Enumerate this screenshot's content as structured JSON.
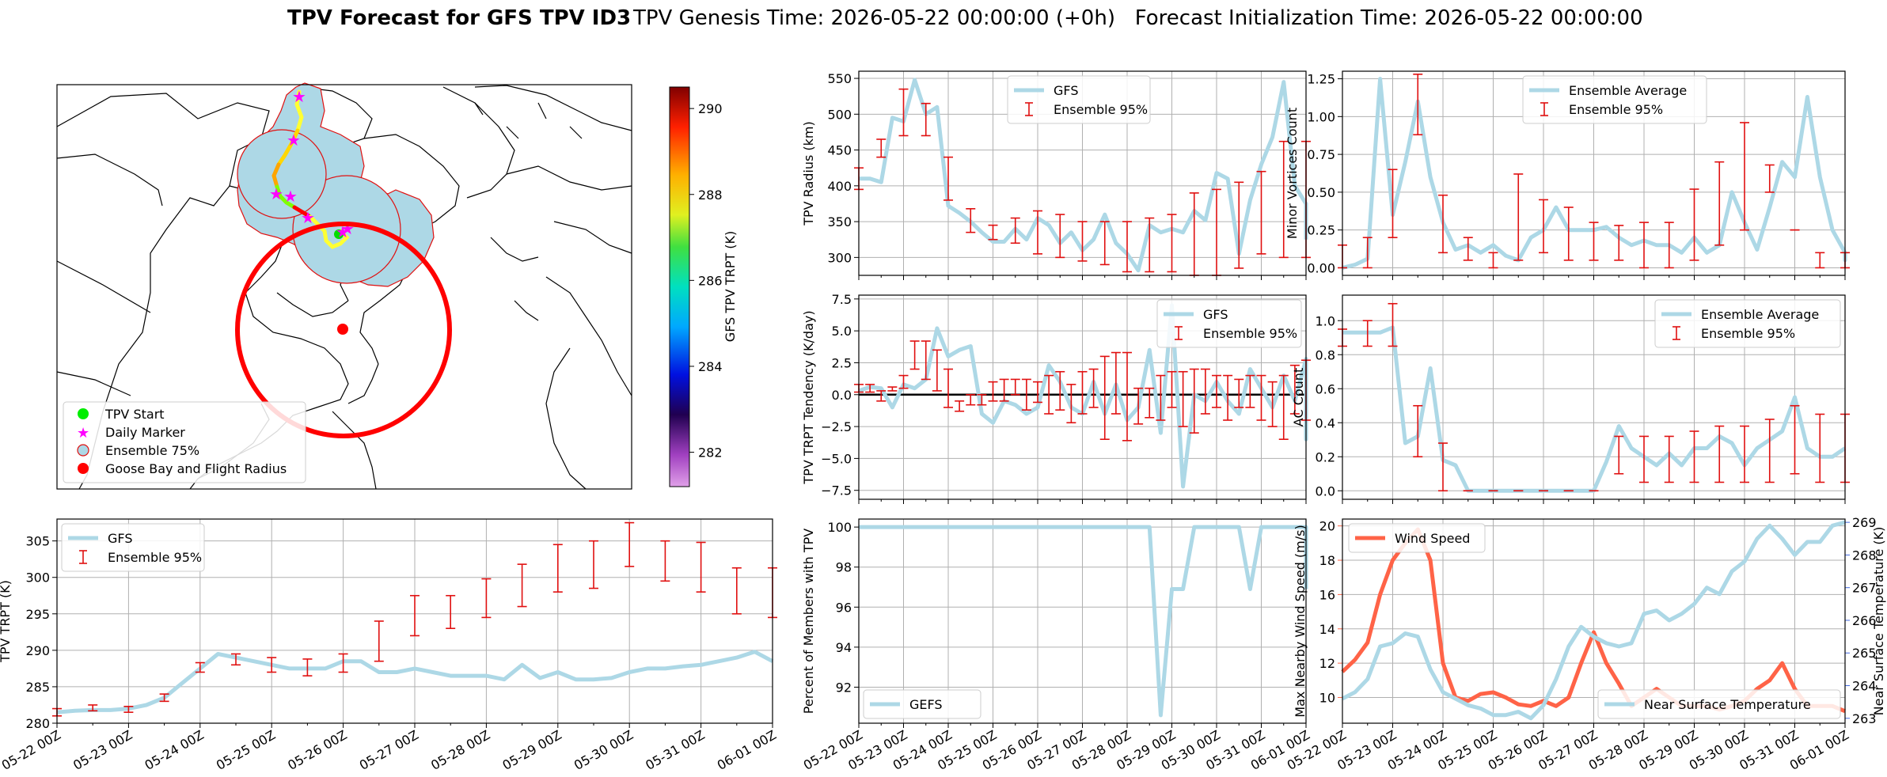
{
  "title": {
    "bold": "TPV Forecast for GFS TPV ID3",
    "rest": "TPV Genesis Time: 2026-05-22 00:00:00 (+0h)   Forecast Initialization Time: 2026-05-22 00:00:00"
  },
  "colors": {
    "light_blue": "#add8e6",
    "error_red": "#e01010",
    "wind": "#ff6347",
    "temp_axis": "#4169e1"
  },
  "dates": [
    "05-22 00Z",
    "05-23 00Z",
    "05-24 00Z",
    "05-25 00Z",
    "05-26 00Z",
    "05-27 00Z",
    "05-28 00Z",
    "05-29 00Z",
    "05-30 00Z",
    "05-31 00Z",
    "06-01 00Z"
  ],
  "map": {
    "legend": [
      {
        "label": "TPV Start",
        "marker": "green-dot"
      },
      {
        "label": "Daily Marker",
        "marker": "magenta-star"
      },
      {
        "label": "Ensemble 75%",
        "marker": "blue-circle"
      },
      {
        "label": "Goose Bay and Flight Radius",
        "marker": "red-dot"
      }
    ],
    "colorbar": {
      "label": "GFS TPV TRPT (K)",
      "ticks": [
        282,
        284,
        286,
        288,
        290
      ],
      "range": [
        281.2,
        290.5
      ]
    }
  },
  "chart_data": [
    {
      "id": "radius",
      "type": "line",
      "ylabel": "TPV Radius (km)",
      "ylim": [
        275,
        560
      ],
      "yticks": [
        300,
        350,
        400,
        450,
        500,
        550
      ],
      "xlim": [
        0,
        10
      ],
      "grid": true,
      "legend": {
        "entries": [
          "GFS",
          "Ensemble 95%"
        ],
        "position": "upper-center"
      },
      "series": [
        {
          "name": "GFS",
          "x_step_days": 0.25,
          "values": [
            410,
            410,
            405,
            495,
            490,
            548,
            500,
            510,
            372,
            362,
            350,
            335,
            322,
            322,
            340,
            325,
            355,
            345,
            320,
            335,
            310,
            325,
            360,
            320,
            305,
            282,
            345,
            335,
            340,
            335,
            365,
            352,
            418,
            410,
            305,
            380,
            430,
            468,
            545,
            400,
            375,
            335,
            350,
            325
          ]
        }
      ],
      "errorbars": [
        {
          "name": "Ensemble 95%",
          "x": [
            0,
            0.5,
            1,
            1.5,
            2,
            2.5,
            3,
            3.5,
            4,
            4.5,
            5,
            5.5,
            6,
            6.5,
            7,
            7.5,
            8,
            8.5,
            9,
            9.5,
            10
          ],
          "low": [
            395,
            440,
            470,
            470,
            380,
            335,
            325,
            320,
            305,
            300,
            295,
            290,
            280,
            280,
            280,
            275,
            275,
            285,
            305,
            300,
            300
          ],
          "high": [
            425,
            465,
            535,
            515,
            440,
            368,
            345,
            355,
            365,
            360,
            350,
            350,
            350,
            355,
            360,
            390,
            395,
            405,
            420,
            462,
            462
          ]
        }
      ]
    },
    {
      "id": "minor_vortices",
      "type": "line",
      "ylabel": "Minor Vortices Count",
      "ylim": [
        -0.05,
        1.3
      ],
      "yticks": [
        0.0,
        0.25,
        0.5,
        0.75,
        1.0,
        1.25
      ],
      "yticklabels": [
        "0.00",
        "0.25",
        "0.50",
        "0.75",
        "1.00",
        "1.25"
      ],
      "xlim": [
        0,
        10
      ],
      "grid": true,
      "legend": {
        "entries": [
          "Ensemble Average",
          "Ensemble 95%"
        ],
        "position": "upper-center"
      },
      "series": [
        {
          "name": "Ensemble Average",
          "x_step_days": 0.25,
          "values": [
            0.0,
            0.02,
            0.06,
            1.25,
            0.35,
            0.7,
            1.1,
            0.6,
            0.3,
            0.12,
            0.15,
            0.1,
            0.15,
            0.08,
            0.05,
            0.2,
            0.25,
            0.4,
            0.25,
            0.25,
            0.25,
            0.27,
            0.2,
            0.15,
            0.18,
            0.15,
            0.15,
            0.1,
            0.2,
            0.1,
            0.15,
            0.5,
            0.3,
            0.12,
            0.4,
            0.7,
            0.6,
            1.13,
            0.6,
            0.25,
            0.1,
            0.06,
            0.05,
            0.08
          ]
        }
      ],
      "errorbars": [
        {
          "name": "Ensemble 95%",
          "x": [
            0,
            0.5,
            1,
            1.5,
            2,
            2.5,
            3,
            3.5,
            4,
            4.5,
            5,
            5.5,
            6,
            6.5,
            7,
            7.5,
            8,
            8.5,
            9,
            9.5,
            10
          ],
          "low": [
            0.0,
            0.0,
            0.2,
            0.88,
            0.1,
            0.05,
            0.0,
            0.05,
            0.1,
            0.05,
            0.05,
            0.05,
            0.0,
            0.0,
            0.05,
            0.15,
            0.25,
            0.5,
            0.25,
            0.0,
            0.0
          ],
          "high": [
            0.15,
            0.2,
            0.65,
            1.28,
            0.48,
            0.2,
            0.1,
            0.62,
            0.45,
            0.4,
            0.3,
            0.28,
            0.3,
            0.3,
            0.52,
            0.7,
            0.96,
            0.68,
            0.25,
            0.1,
            0.1
          ]
        }
      ]
    },
    {
      "id": "trpt_tendency",
      "type": "line",
      "ylabel": "TPV TRPT Tendency (K/day)",
      "ylim": [
        -8.2,
        7.8
      ],
      "yticks": [
        -7.5,
        -5.0,
        -2.5,
        0.0,
        2.5,
        5.0,
        7.5
      ],
      "yticklabels": [
        "−7.5",
        "−5.0",
        "−2.5",
        "0.0",
        "2.5",
        "5.0",
        "7.5"
      ],
      "xlim": [
        0,
        10
      ],
      "grid": true,
      "zero_line": true,
      "legend": {
        "entries": [
          "GFS",
          "Ensemble 95%"
        ],
        "position": "upper-right"
      },
      "series": [
        {
          "name": "GFS",
          "x_step_days": 0.25,
          "values": [
            0.3,
            0.6,
            0.5,
            -1.0,
            0.8,
            0.5,
            1.2,
            5.2,
            3.0,
            3.5,
            3.8,
            -1.5,
            -2.2,
            -0.5,
            -0.8,
            -1.5,
            -1.0,
            2.3,
            1.0,
            -1.0,
            -1.5,
            1.0,
            -1.5,
            0.8,
            -2.0,
            -1.0,
            3.5,
            -3.0,
            7.0,
            -7.2,
            0.0,
            -0.5,
            1.0,
            -0.5,
            -1.5,
            2.0,
            0.5,
            -1.0,
            1.5,
            -0.5,
            2.8,
            1.0,
            0.5,
            -3.5,
            2.5,
            -1.8
          ]
        }
      ],
      "errorbars": [
        {
          "name": "Ensemble 95%",
          "x": [
            0,
            0.25,
            0.5,
            0.75,
            1,
            1.25,
            1.5,
            1.75,
            2,
            2.25,
            2.5,
            2.75,
            3,
            3.25,
            3.5,
            3.75,
            4,
            4.25,
            4.5,
            4.75,
            5,
            5.25,
            5.5,
            5.75,
            6,
            6.25,
            6.5,
            6.75,
            7,
            7.25,
            7.5,
            7.75,
            8,
            8.25,
            8.5,
            8.75,
            9,
            9.25,
            9.5,
            9.75,
            10
          ],
          "low": [
            0.2,
            0.2,
            -0.5,
            0.3,
            0.5,
            2.0,
            1.2,
            0.3,
            -1.0,
            -1.3,
            -0.8,
            -0.8,
            -0.5,
            -0.5,
            0.0,
            -1.2,
            -0.6,
            -1.5,
            -1.2,
            -2.2,
            -1.5,
            -1.0,
            -3.5,
            -1.5,
            -3.6,
            -2.3,
            -1.8,
            -2.0,
            -1.0,
            -2.5,
            -3.0,
            -1.5,
            -1.0,
            -2.0,
            -1.0,
            -1.0,
            -2.0,
            -2.5,
            -3.5,
            -1.5,
            -2.0
          ],
          "high": [
            0.8,
            0.8,
            0.3,
            0.6,
            1.5,
            4.2,
            4.2,
            3.5,
            2.0,
            -0.5,
            0.0,
            0.0,
            1.0,
            1.2,
            1.2,
            1.2,
            1.0,
            1.5,
            1.8,
            0.8,
            1.8,
            2.0,
            3.0,
            3.3,
            3.3,
            0.5,
            0.5,
            1.5,
            1.8,
            1.8,
            2.0,
            2.0,
            1.5,
            1.5,
            1.2,
            1.5,
            1.5,
            1.0,
            1.5,
            2.3,
            2.7
          ]
        }
      ]
    },
    {
      "id": "ac_count",
      "type": "line",
      "ylabel": "AC Count",
      "ylim": [
        -0.05,
        1.15
      ],
      "yticks": [
        0.0,
        0.2,
        0.4,
        0.6,
        0.8,
        1.0
      ],
      "yticklabels": [
        "0.0",
        "0.2",
        "0.4",
        "0.6",
        "0.8",
        "1.0"
      ],
      "xlim": [
        0,
        10
      ],
      "grid": true,
      "legend": {
        "entries": [
          "Ensemble Average",
          "Ensemble 95%"
        ],
        "position": "upper-right"
      },
      "series": [
        {
          "name": "Ensemble Average",
          "x_step_days": 0.25,
          "values": [
            0.93,
            0.93,
            0.93,
            0.93,
            0.96,
            0.28,
            0.32,
            0.72,
            0.18,
            0.15,
            0.0,
            0.0,
            0.0,
            0.0,
            0.0,
            0.0,
            0.0,
            0.0,
            0.0,
            0.0,
            0.0,
            0.17,
            0.38,
            0.25,
            0.2,
            0.15,
            0.22,
            0.15,
            0.25,
            0.25,
            0.32,
            0.28,
            0.15,
            0.25,
            0.3,
            0.35,
            0.55,
            0.25,
            0.2,
            0.2,
            0.25
          ]
        }
      ],
      "errorbars": [
        {
          "name": "Ensemble 95%",
          "x": [
            0,
            0.5,
            1,
            1.5,
            2,
            2.5,
            3,
            3.5,
            4,
            4.5,
            5,
            5.5,
            6,
            6.5,
            7,
            7.5,
            8,
            8.5,
            9,
            9.5,
            10
          ],
          "low": [
            0.85,
            0.85,
            0.85,
            0.2,
            0.0,
            0.0,
            0.0,
            0.0,
            0.0,
            0.0,
            0.0,
            0.1,
            0.05,
            0.05,
            0.05,
            0.05,
            0.05,
            0.05,
            0.1,
            0.05,
            0.05
          ],
          "high": [
            0.95,
            1.0,
            1.1,
            0.5,
            0.28,
            0.0,
            0.0,
            0.0,
            0.0,
            0.0,
            0.0,
            0.32,
            0.32,
            0.32,
            0.35,
            0.38,
            0.38,
            0.42,
            0.5,
            0.45,
            0.45
          ]
        }
      ]
    },
    {
      "id": "trpt",
      "type": "line",
      "ylabel": "TPV TRPT (K)",
      "ylim": [
        280,
        308
      ],
      "yticks": [
        280,
        285,
        290,
        295,
        300,
        305
      ],
      "xlim": [
        0,
        10
      ],
      "grid": true,
      "legend": {
        "entries": [
          "GFS",
          "Ensemble 95%"
        ],
        "position": "upper-left"
      },
      "series": [
        {
          "name": "GFS",
          "x_step_days": 0.25,
          "values": [
            281.5,
            281.7,
            281.8,
            281.8,
            282.0,
            282.5,
            283.5,
            285.5,
            287.5,
            289.5,
            289.0,
            288.5,
            288.0,
            287.5,
            287.5,
            287.5,
            288.5,
            288.5,
            287.0,
            287.0,
            287.5,
            287.0,
            286.5,
            286.5,
            286.5,
            286.0,
            288.0,
            286.2,
            287.0,
            286.0,
            286.0,
            286.2,
            287.0,
            287.5,
            287.5,
            287.8,
            288.0,
            288.5,
            289.0,
            289.8,
            288.5,
            288.5
          ]
        }
      ],
      "errorbars": [
        {
          "name": "Ensemble 95%",
          "x": [
            0,
            0.5,
            1,
            1.5,
            2,
            2.5,
            3,
            3.5,
            4,
            4.5,
            5,
            5.5,
            6,
            6.5,
            7,
            7.5,
            8,
            8.5,
            9,
            9.5,
            10
          ],
          "low": [
            281.0,
            281.7,
            281.5,
            283.0,
            287.0,
            288.0,
            287.0,
            286.5,
            287.0,
            288.5,
            292.0,
            293.0,
            294.5,
            296.0,
            298.0,
            298.5,
            301.5,
            299.5,
            298.0,
            295.0,
            294.5
          ],
          "high": [
            282.0,
            282.5,
            282.3,
            284.0,
            288.3,
            289.5,
            289.0,
            288.8,
            289.5,
            294.0,
            297.5,
            297.5,
            299.8,
            301.8,
            304.5,
            305.0,
            307.5,
            305.0,
            304.8,
            301.3,
            301.3
          ]
        }
      ]
    },
    {
      "id": "percent_members",
      "type": "line",
      "ylabel": "Percent of Members with TPV",
      "ylim": [
        90.2,
        100.4
      ],
      "yticks": [
        92,
        94,
        96,
        98,
        100
      ],
      "xlim": [
        0,
        10
      ],
      "grid": true,
      "legend": {
        "entries": [
          "GEFS"
        ],
        "position": "lower-left"
      },
      "series": [
        {
          "name": "GEFS",
          "x_step_days": 0.25,
          "values": [
            100,
            100,
            100,
            100,
            100,
            100,
            100,
            100,
            100,
            100,
            100,
            100,
            100,
            100,
            100,
            100,
            100,
            100,
            100,
            100,
            100,
            100,
            100,
            100,
            100,
            100,
            100,
            90.6,
            96.9,
            96.9,
            100,
            100,
            100,
            100,
            100,
            96.9,
            100,
            100,
            100,
            100,
            100,
            100,
            100,
            100,
            100,
            100,
            100,
            96.9
          ]
        }
      ]
    },
    {
      "id": "wind_temp",
      "type": "line",
      "ylabel": "Max Nearby Wind Speed (m/s)",
      "ylabel_right": "Near Surface Temperature (K)",
      "ylim": [
        8.5,
        20.4
      ],
      "yticks": [
        10,
        12,
        14,
        16,
        18,
        20
      ],
      "ylim_right": [
        262.85,
        269.1
      ],
      "yticks_right": [
        263,
        264,
        265,
        266,
        267,
        268,
        269
      ],
      "xlim": [
        0,
        10
      ],
      "grid": true,
      "legend": {
        "entries": [
          "Wind Speed",
          "Near Surface Temperature"
        ],
        "position": "upper-left / lower-right"
      },
      "series": [
        {
          "name": "Wind Speed",
          "axis": "left",
          "x_step_days": 0.25,
          "values": [
            11.5,
            12.2,
            13.2,
            16.0,
            18.0,
            19.0,
            19.8,
            18.0,
            12.0,
            10.0,
            9.8,
            10.2,
            10.3,
            10.0,
            9.6,
            9.5,
            9.8,
            9.5,
            10.0,
            12.0,
            13.8,
            12.0,
            10.8,
            9.5,
            10.0,
            10.5,
            10.0,
            9.5,
            9.5,
            9.5,
            9.3,
            9.5,
            9.8,
            10.5,
            11.0,
            12.0,
            10.5,
            9.5,
            9.5,
            9.5,
            9.2
          ]
        },
        {
          "name": "Near Surface Temperature",
          "axis": "right",
          "x_step_days": 0.25,
          "values": [
            263.6,
            263.8,
            264.2,
            265.2,
            265.3,
            265.6,
            265.5,
            264.5,
            263.8,
            263.6,
            263.4,
            263.3,
            263.1,
            263.1,
            263.2,
            263.0,
            263.4,
            264.2,
            265.2,
            265.8,
            265.5,
            265.3,
            265.2,
            265.3,
            266.2,
            266.3,
            266.0,
            266.2,
            266.5,
            267.0,
            266.8,
            267.5,
            267.8,
            268.5,
            268.9,
            268.5,
            268.0,
            268.4,
            268.4,
            268.9,
            269.0
          ]
        }
      ]
    }
  ]
}
